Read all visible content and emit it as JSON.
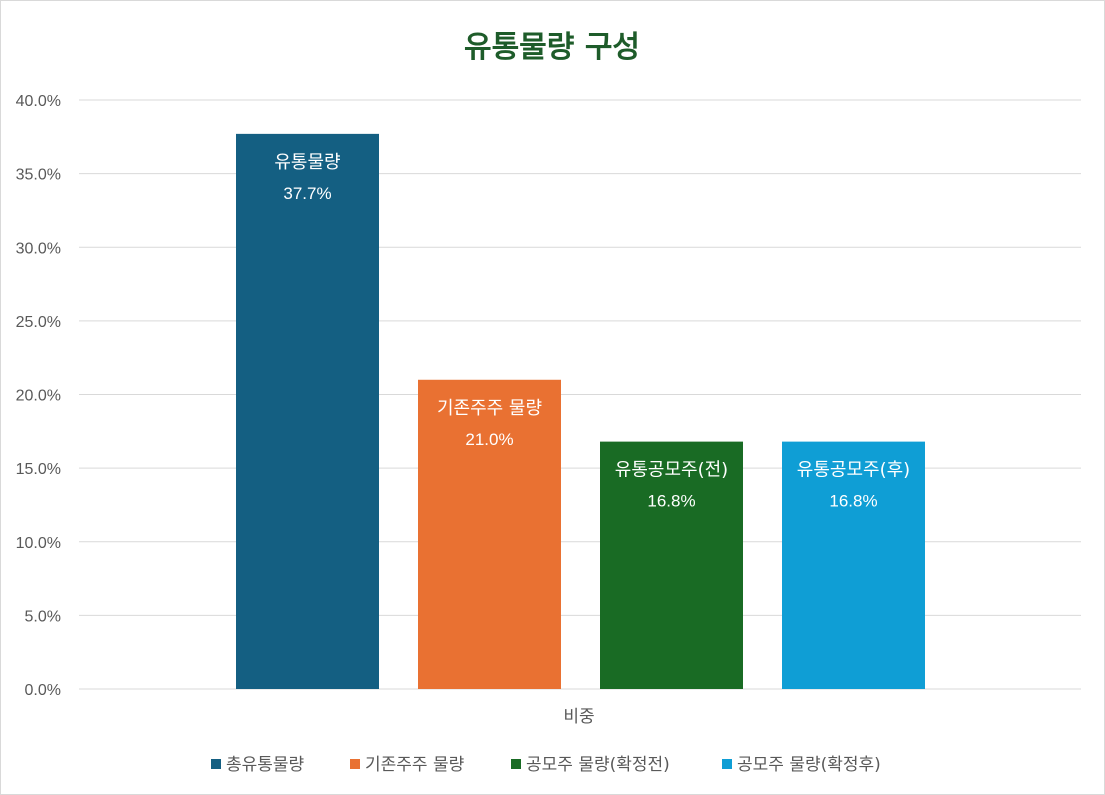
{
  "chart_data": {
    "type": "bar",
    "title": "유통물량 구성",
    "title_color": "#1e5c2a",
    "categories": [
      "비중"
    ],
    "ylim": [
      0,
      40
    ],
    "y_ticks": [
      "0.0%",
      "5.0%",
      "10.0%",
      "15.0%",
      "20.0%",
      "25.0%",
      "30.0%",
      "35.0%",
      "40.0%"
    ],
    "y_unit": "%",
    "grid": true,
    "legend_position": "bottom",
    "series": [
      {
        "name": "총유통물량",
        "label": "유통물량",
        "value_label": "37.7%",
        "values": [
          37.7
        ],
        "color": "#145f82"
      },
      {
        "name": "기존주주 물량",
        "label": "기존주주 물량",
        "value_label": "21.0%",
        "values": [
          21.0
        ],
        "color": "#e97132"
      },
      {
        "name": "공모주 물량(확정전)",
        "label": "유통공모주(전)",
        "value_label": "16.8%",
        "values": [
          16.8
        ],
        "color": "#196b24"
      },
      {
        "name": "공모주 물량(확정후)",
        "label": "유통공모주(후)",
        "value_label": "16.8%",
        "values": [
          16.8
        ],
        "color": "#0f9ed5"
      }
    ]
  }
}
